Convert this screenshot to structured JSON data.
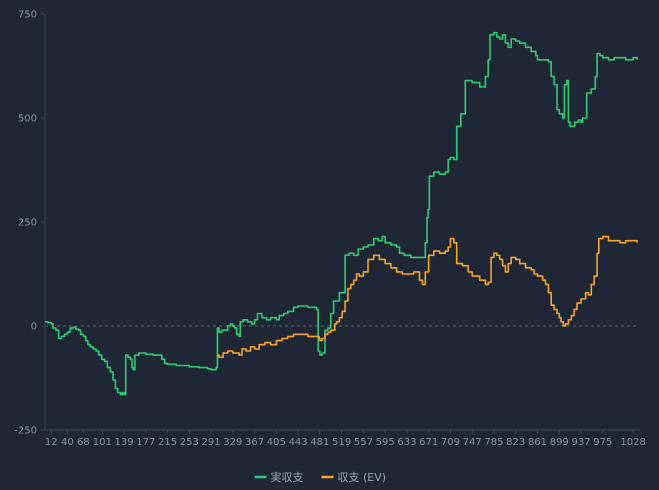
{
  "chart_data": {
    "type": "line",
    "ylim": [
      -250,
      750
    ],
    "xlim": [
      1,
      1040
    ],
    "y_ticks": [
      750,
      500,
      250,
      0,
      -250
    ],
    "x_ticks": [
      12,
      40,
      68,
      101,
      139,
      177,
      215,
      253,
      291,
      329,
      367,
      405,
      443,
      481,
      519,
      557,
      595,
      633,
      671,
      709,
      747,
      785,
      823,
      861,
      899,
      937,
      975,
      1028
    ],
    "zero_line": true,
    "legend_position": "bottom-center",
    "series": [
      {
        "name": "実収支",
        "color": "#2ecc71",
        "points": [
          [
            1,
            10
          ],
          [
            6,
            8
          ],
          [
            12,
            5
          ],
          [
            15,
            -5
          ],
          [
            20,
            -10
          ],
          [
            25,
            -30
          ],
          [
            30,
            -25
          ],
          [
            35,
            -20
          ],
          [
            40,
            -15
          ],
          [
            45,
            -5
          ],
          [
            50,
            -3
          ],
          [
            55,
            -8
          ],
          [
            60,
            -10
          ],
          [
            63,
            -20
          ],
          [
            68,
            -25
          ],
          [
            72,
            -35
          ],
          [
            76,
            -45
          ],
          [
            80,
            -50
          ],
          [
            85,
            -55
          ],
          [
            90,
            -60
          ],
          [
            95,
            -70
          ],
          [
            100,
            -80
          ],
          [
            105,
            -85
          ],
          [
            110,
            -100
          ],
          [
            115,
            -110
          ],
          [
            120,
            -130
          ],
          [
            124,
            -150
          ],
          [
            128,
            -160
          ],
          [
            133,
            -165
          ],
          [
            136,
            -160
          ],
          [
            139,
            -165
          ],
          [
            142,
            -70
          ],
          [
            146,
            -75
          ],
          [
            150,
            -80
          ],
          [
            153,
            -100
          ],
          [
            155,
            -105
          ],
          [
            158,
            -70
          ],
          [
            165,
            -65
          ],
          [
            177,
            -68
          ],
          [
            190,
            -70
          ],
          [
            200,
            -70
          ],
          [
            205,
            -80
          ],
          [
            210,
            -90
          ],
          [
            215,
            -92
          ],
          [
            230,
            -95
          ],
          [
            253,
            -98
          ],
          [
            270,
            -100
          ],
          [
            285,
            -103
          ],
          [
            291,
            -105
          ],
          [
            300,
            -100
          ],
          [
            302,
            -5
          ],
          [
            305,
            -15
          ],
          [
            310,
            -10
          ],
          [
            320,
            0
          ],
          [
            325,
            5
          ],
          [
            329,
            0
          ],
          [
            332,
            -5
          ],
          [
            336,
            -20
          ],
          [
            340,
            -25
          ],
          [
            342,
            10
          ],
          [
            347,
            15
          ],
          [
            355,
            10
          ],
          [
            362,
            5
          ],
          [
            367,
            15
          ],
          [
            372,
            30
          ],
          [
            380,
            20
          ],
          [
            388,
            15
          ],
          [
            395,
            20
          ],
          [
            405,
            15
          ],
          [
            410,
            25
          ],
          [
            418,
            30
          ],
          [
            425,
            35
          ],
          [
            435,
            45
          ],
          [
            443,
            48
          ],
          [
            460,
            45
          ],
          [
            470,
            45
          ],
          [
            475,
            40
          ],
          [
            478,
            -60
          ],
          [
            481,
            -70
          ],
          [
            485,
            -65
          ],
          [
            490,
            -10
          ],
          [
            495,
            -5
          ],
          [
            500,
            30
          ],
          [
            505,
            60
          ],
          [
            510,
            60
          ],
          [
            515,
            80
          ],
          [
            519,
            80
          ],
          [
            525,
            170
          ],
          [
            532,
            175
          ],
          [
            540,
            170
          ],
          [
            548,
            185
          ],
          [
            557,
            190
          ],
          [
            565,
            195
          ],
          [
            575,
            210
          ],
          [
            583,
            205
          ],
          [
            590,
            215
          ],
          [
            595,
            200
          ],
          [
            605,
            195
          ],
          [
            615,
            190
          ],
          [
            620,
            175
          ],
          [
            628,
            170
          ],
          [
            633,
            170
          ],
          [
            640,
            165
          ],
          [
            650,
            165
          ],
          [
            660,
            165
          ],
          [
            665,
            200
          ],
          [
            668,
            260
          ],
          [
            670,
            280
          ],
          [
            672,
            360
          ],
          [
            680,
            370
          ],
          [
            690,
            365
          ],
          [
            700,
            370
          ],
          [
            705,
            400
          ],
          [
            709,
            405
          ],
          [
            715,
            400
          ],
          [
            720,
            480
          ],
          [
            727,
            510
          ],
          [
            735,
            590
          ],
          [
            742,
            590
          ],
          [
            747,
            585
          ],
          [
            760,
            575
          ],
          [
            770,
            600
          ],
          [
            775,
            640
          ],
          [
            778,
            700
          ],
          [
            785,
            705
          ],
          [
            790,
            695
          ],
          [
            795,
            690
          ],
          [
            800,
            700
          ],
          [
            805,
            680
          ],
          [
            810,
            670
          ],
          [
            815,
            690
          ],
          [
            823,
            685
          ],
          [
            830,
            680
          ],
          [
            840,
            670
          ],
          [
            850,
            660
          ],
          [
            858,
            650
          ],
          [
            861,
            640
          ],
          [
            870,
            640
          ],
          [
            880,
            635
          ],
          [
            885,
            600
          ],
          [
            890,
            580
          ],
          [
            895,
            520
          ],
          [
            899,
            510
          ],
          [
            905,
            500
          ],
          [
            908,
            580
          ],
          [
            912,
            590
          ],
          [
            915,
            490
          ],
          [
            918,
            480
          ],
          [
            922,
            480
          ],
          [
            926,
            490
          ],
          [
            932,
            495
          ],
          [
            937,
            490
          ],
          [
            940,
            500
          ],
          [
            947,
            560
          ],
          [
            955,
            570
          ],
          [
            962,
            600
          ],
          [
            965,
            655
          ],
          [
            970,
            650
          ],
          [
            975,
            645
          ],
          [
            985,
            640
          ],
          [
            995,
            645
          ],
          [
            1005,
            645
          ],
          [
            1015,
            640
          ],
          [
            1028,
            645
          ],
          [
            1035,
            640
          ]
        ]
      },
      {
        "name": "収支 (EV)",
        "color": "#f5a623",
        "points": [
          [
            302,
            -70
          ],
          [
            305,
            -75
          ],
          [
            312,
            -65
          ],
          [
            320,
            -60
          ],
          [
            329,
            -65
          ],
          [
            340,
            -70
          ],
          [
            345,
            -55
          ],
          [
            352,
            -60
          ],
          [
            360,
            -50
          ],
          [
            367,
            -55
          ],
          [
            375,
            -45
          ],
          [
            385,
            -40
          ],
          [
            395,
            -45
          ],
          [
            405,
            -35
          ],
          [
            415,
            -30
          ],
          [
            425,
            -25
          ],
          [
            435,
            -20
          ],
          [
            443,
            -20
          ],
          [
            460,
            -25
          ],
          [
            475,
            -25
          ],
          [
            480,
            -30
          ],
          [
            481,
            -35
          ],
          [
            485,
            -30
          ],
          [
            490,
            -20
          ],
          [
            495,
            -15
          ],
          [
            500,
            -10
          ],
          [
            507,
            5
          ],
          [
            510,
            10
          ],
          [
            515,
            20
          ],
          [
            520,
            35
          ],
          [
            525,
            60
          ],
          [
            530,
            90
          ],
          [
            535,
            100
          ],
          [
            540,
            110
          ],
          [
            545,
            125
          ],
          [
            550,
            120
          ],
          [
            557,
            130
          ],
          [
            565,
            160
          ],
          [
            575,
            170
          ],
          [
            585,
            160
          ],
          [
            595,
            150
          ],
          [
            605,
            140
          ],
          [
            615,
            130
          ],
          [
            625,
            125
          ],
          [
            633,
            125
          ],
          [
            645,
            130
          ],
          [
            655,
            110
          ],
          [
            660,
            100
          ],
          [
            665,
            130
          ],
          [
            671,
            170
          ],
          [
            680,
            180
          ],
          [
            690,
            175
          ],
          [
            700,
            180
          ],
          [
            705,
            190
          ],
          [
            709,
            210
          ],
          [
            715,
            200
          ],
          [
            720,
            150
          ],
          [
            730,
            145
          ],
          [
            740,
            130
          ],
          [
            747,
            120
          ],
          [
            760,
            110
          ],
          [
            770,
            100
          ],
          [
            775,
            105
          ],
          [
            780,
            165
          ],
          [
            785,
            175
          ],
          [
            790,
            170
          ],
          [
            795,
            160
          ],
          [
            800,
            145
          ],
          [
            805,
            130
          ],
          [
            810,
            150
          ],
          [
            815,
            165
          ],
          [
            823,
            160
          ],
          [
            830,
            150
          ],
          [
            840,
            140
          ],
          [
            850,
            135
          ],
          [
            855,
            125
          ],
          [
            861,
            120
          ],
          [
            870,
            110
          ],
          [
            875,
            100
          ],
          [
            880,
            80
          ],
          [
            885,
            50
          ],
          [
            890,
            40
          ],
          [
            895,
            30
          ],
          [
            899,
            20
          ],
          [
            902,
            10
          ],
          [
            906,
            0
          ],
          [
            910,
            5
          ],
          [
            915,
            15
          ],
          [
            920,
            25
          ],
          [
            925,
            40
          ],
          [
            930,
            55
          ],
          [
            937,
            65
          ],
          [
            945,
            80
          ],
          [
            950,
            75
          ],
          [
            955,
            100
          ],
          [
            960,
            120
          ],
          [
            965,
            175
          ],
          [
            968,
            210
          ],
          [
            975,
            215
          ],
          [
            985,
            205
          ],
          [
            995,
            205
          ],
          [
            1005,
            200
          ],
          [
            1015,
            205
          ],
          [
            1028,
            205
          ],
          [
            1035,
            200
          ]
        ]
      }
    ]
  }
}
